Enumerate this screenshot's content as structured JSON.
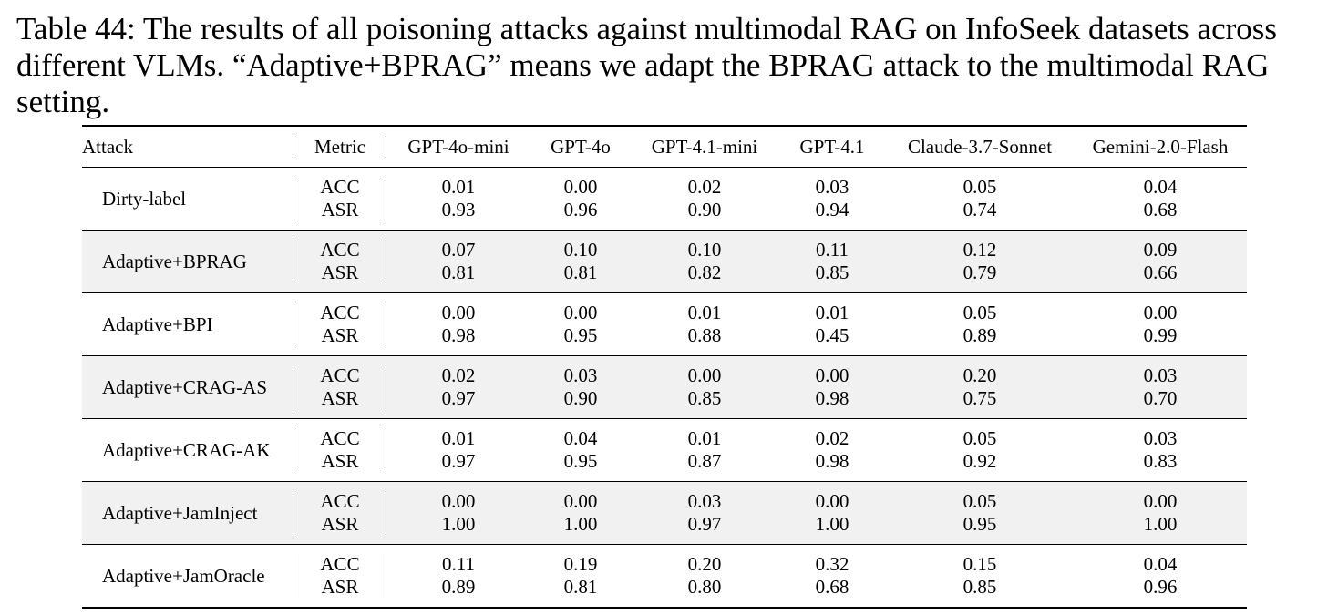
{
  "caption": "Table 44: The results of all poisoning attacks against multimodal RAG on InfoSeek datasets across different VLMs. “Adaptive+BPRAG” means we adapt the BPRAG attack to the multimodal RAG setting.",
  "headers": {
    "attack": "Attack",
    "metric": "Metric",
    "models": [
      "GPT-4o-mini",
      "GPT-4o",
      "GPT-4.1-mini",
      "GPT-4.1",
      "Claude-3.7-Sonnet",
      "Gemini-2.0-Flash"
    ]
  },
  "metric_labels": [
    "ACC",
    "ASR"
  ],
  "rows": [
    {
      "attack": "Dirty-label",
      "acc": [
        "0.01",
        "0.00",
        "0.02",
        "0.03",
        "0.05",
        "0.04"
      ],
      "asr": [
        "0.93",
        "0.96",
        "0.90",
        "0.94",
        "0.74",
        "0.68"
      ]
    },
    {
      "attack": "Adaptive+BPRAG",
      "acc": [
        "0.07",
        "0.10",
        "0.10",
        "0.11",
        "0.12",
        "0.09"
      ],
      "asr": [
        "0.81",
        "0.81",
        "0.82",
        "0.85",
        "0.79",
        "0.66"
      ]
    },
    {
      "attack": "Adaptive+BPI",
      "acc": [
        "0.00",
        "0.00",
        "0.01",
        "0.01",
        "0.05",
        "0.00"
      ],
      "asr": [
        "0.98",
        "0.95",
        "0.88",
        "0.45",
        "0.89",
        "0.99"
      ]
    },
    {
      "attack": "Adaptive+CRAG-AS",
      "acc": [
        "0.02",
        "0.03",
        "0.00",
        "0.00",
        "0.20",
        "0.03"
      ],
      "asr": [
        "0.97",
        "0.90",
        "0.85",
        "0.98",
        "0.75",
        "0.70"
      ]
    },
    {
      "attack": "Adaptive+CRAG-AK",
      "acc": [
        "0.01",
        "0.04",
        "0.01",
        "0.02",
        "0.05",
        "0.03"
      ],
      "asr": [
        "0.97",
        "0.95",
        "0.87",
        "0.98",
        "0.92",
        "0.83"
      ]
    },
    {
      "attack": "Adaptive+JamInject",
      "acc": [
        "0.00",
        "0.00",
        "0.03",
        "0.00",
        "0.05",
        "0.00"
      ],
      "asr": [
        "1.00",
        "1.00",
        "0.97",
        "1.00",
        "0.95",
        "1.00"
      ]
    },
    {
      "attack": "Adaptive+JamOracle",
      "acc": [
        "0.11",
        "0.19",
        "0.20",
        "0.32",
        "0.15",
        "0.04"
      ],
      "asr": [
        "0.89",
        "0.81",
        "0.80",
        "0.68",
        "0.85",
        "0.96"
      ]
    }
  ]
}
